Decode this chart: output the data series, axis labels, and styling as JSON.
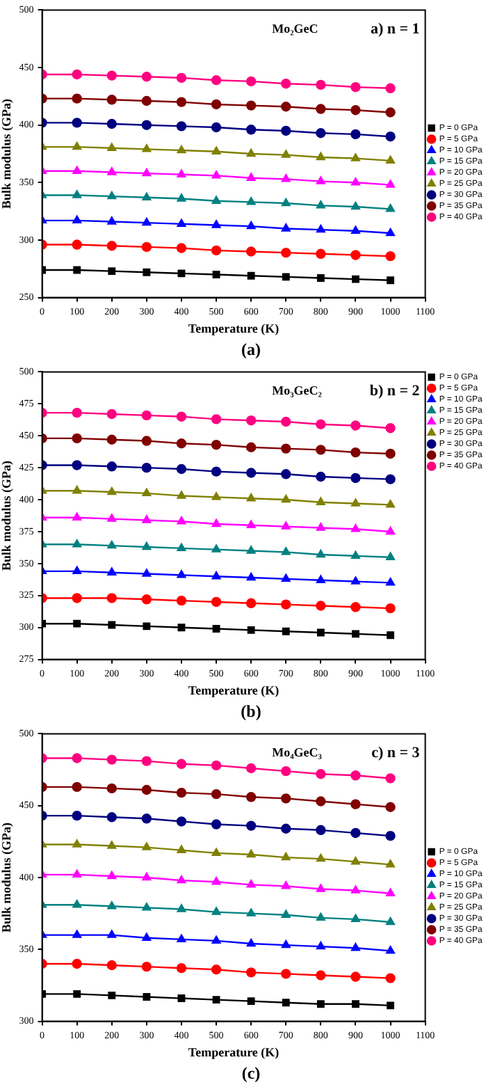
{
  "chart_data": [
    {
      "type": "line",
      "xlabel": "Temperature (K)",
      "ylabel": "Bulk modulus (GPa)",
      "annotations": [
        "Mo₂GeC",
        "a) n = 1",
        "(a)"
      ],
      "x": [
        0,
        100,
        200,
        300,
        400,
        500,
        600,
        700,
        800,
        900,
        1000
      ],
      "xlim": [
        0,
        1100
      ],
      "xticks": [
        0,
        100,
        200,
        300,
        400,
        500,
        600,
        700,
        800,
        900,
        1000,
        1100
      ],
      "ylim": [
        250,
        500
      ],
      "yticks": [
        250,
        300,
        350,
        400,
        450,
        500
      ],
      "legend": "right",
      "grid": false,
      "series": [
        {
          "name": "P = 0 GPa",
          "color": "#000000",
          "marker": "square",
          "values": [
            274,
            274,
            273,
            272,
            271,
            270,
            269,
            268,
            267,
            266,
            265
          ]
        },
        {
          "name": "P = 5 GPa",
          "color": "#ff0000",
          "marker": "circle",
          "values": [
            296,
            296,
            295,
            294,
            293,
            291,
            290,
            289,
            288,
            287,
            286
          ]
        },
        {
          "name": "P = 10 GPa",
          "color": "#0000ff",
          "marker": "triangle",
          "values": [
            317,
            317,
            316,
            315,
            314,
            313,
            312,
            310,
            309,
            308,
            306
          ]
        },
        {
          "name": "P = 15 GPa",
          "color": "#008080",
          "marker": "triangle",
          "values": [
            339,
            339,
            338,
            337,
            336,
            334,
            333,
            332,
            330,
            329,
            327
          ]
        },
        {
          "name": "P = 20 GPa",
          "color": "#ff00ff",
          "marker": "triangle",
          "values": [
            360,
            360,
            359,
            358,
            357,
            356,
            354,
            353,
            351,
            350,
            348
          ]
        },
        {
          "name": "P = 25 GPa",
          "color": "#808000",
          "marker": "triangle",
          "values": [
            381,
            381,
            380,
            379,
            378,
            377,
            375,
            374,
            372,
            371,
            369
          ]
        },
        {
          "name": "P = 30 GPa",
          "color": "#000080",
          "marker": "circle",
          "values": [
            402,
            402,
            401,
            400,
            399,
            398,
            396,
            395,
            393,
            392,
            390
          ]
        },
        {
          "name": "P = 35 GPa",
          "color": "#800000",
          "marker": "circle",
          "values": [
            423,
            423,
            422,
            421,
            420,
            418,
            417,
            416,
            414,
            413,
            411
          ]
        },
        {
          "name": "P = 40 GPa",
          "color": "#ff0080",
          "marker": "circle",
          "values": [
            444,
            444,
            443,
            442,
            441,
            439,
            438,
            436,
            435,
            433,
            432
          ]
        }
      ]
    },
    {
      "type": "line",
      "xlabel": "Temperature (K)",
      "ylabel": "Bulk modulus (GPa)",
      "annotations": [
        "Mo₃GeC₂",
        "b) n = 2",
        "(b)"
      ],
      "x": [
        0,
        100,
        200,
        300,
        400,
        500,
        600,
        700,
        800,
        900,
        1000
      ],
      "xlim": [
        0,
        1100
      ],
      "xticks": [
        0,
        100,
        200,
        300,
        400,
        500,
        600,
        700,
        800,
        900,
        1000,
        1100
      ],
      "ylim": [
        275,
        500
      ],
      "yticks": [
        275,
        300,
        325,
        350,
        375,
        400,
        425,
        450,
        475,
        500
      ],
      "legend": "top right",
      "grid": false,
      "series": [
        {
          "name": "P = 0 GPa",
          "color": "#000000",
          "marker": "square",
          "values": [
            303,
            303,
            302,
            301,
            300,
            299,
            298,
            297,
            296,
            295,
            294
          ]
        },
        {
          "name": "P = 5 GPa",
          "color": "#ff0000",
          "marker": "circle",
          "values": [
            323,
            323,
            323,
            322,
            321,
            320,
            319,
            318,
            317,
            316,
            315
          ]
        },
        {
          "name": "P = 10 GPa",
          "color": "#0000ff",
          "marker": "triangle",
          "values": [
            344,
            344,
            343,
            342,
            341,
            340,
            339,
            338,
            337,
            336,
            335
          ]
        },
        {
          "name": "P = 15 GPa",
          "color": "#008080",
          "marker": "triangle",
          "values": [
            365,
            365,
            364,
            363,
            362,
            361,
            360,
            359,
            357,
            356,
            355
          ]
        },
        {
          "name": "P = 20 GPa",
          "color": "#ff00ff",
          "marker": "triangle",
          "values": [
            386,
            386,
            385,
            384,
            383,
            381,
            380,
            379,
            378,
            377,
            375
          ]
        },
        {
          "name": "P = 25 GPa",
          "color": "#808000",
          "marker": "triangle",
          "values": [
            407,
            407,
            406,
            405,
            403,
            402,
            401,
            400,
            398,
            397,
            396
          ]
        },
        {
          "name": "P = 30 GPa",
          "color": "#000080",
          "marker": "circle",
          "values": [
            427,
            427,
            426,
            425,
            424,
            422,
            421,
            420,
            418,
            417,
            416
          ]
        },
        {
          "name": "P = 35 GPa",
          "color": "#800000",
          "marker": "circle",
          "values": [
            448,
            448,
            447,
            446,
            444,
            443,
            441,
            440,
            439,
            437,
            436
          ]
        },
        {
          "name": "P = 40 GPa",
          "color": "#ff0080",
          "marker": "circle",
          "values": [
            468,
            468,
            467,
            466,
            465,
            463,
            462,
            461,
            459,
            458,
            456
          ]
        }
      ]
    },
    {
      "type": "line",
      "xlabel": "Temperature (K)",
      "ylabel": "Bulk modulus (GPa)",
      "annotations": [
        "Mo₄GeC₃",
        "c) n = 3",
        "(c)"
      ],
      "x": [
        0,
        100,
        200,
        300,
        400,
        500,
        600,
        700,
        800,
        900,
        1000
      ],
      "xlim": [
        0,
        1100
      ],
      "xticks": [
        0,
        100,
        200,
        300,
        400,
        500,
        600,
        700,
        800,
        900,
        1000,
        1100
      ],
      "ylim": [
        300,
        500
      ],
      "yticks": [
        300,
        350,
        400,
        450,
        500
      ],
      "legend": "right",
      "grid": false,
      "series": [
        {
          "name": "P = 0 GPa",
          "color": "#000000",
          "marker": "square",
          "values": [
            319,
            319,
            318,
            317,
            316,
            315,
            314,
            313,
            312,
            312,
            311
          ]
        },
        {
          "name": "P = 5 GPa",
          "color": "#ff0000",
          "marker": "circle",
          "values": [
            340,
            340,
            339,
            338,
            337,
            336,
            334,
            333,
            332,
            331,
            330
          ]
        },
        {
          "name": "P = 10 GPa",
          "color": "#0000ff",
          "marker": "triangle",
          "values": [
            360,
            360,
            360,
            358,
            357,
            356,
            354,
            353,
            352,
            351,
            349
          ]
        },
        {
          "name": "P = 15 GPa",
          "color": "#008080",
          "marker": "triangle",
          "values": [
            381,
            381,
            380,
            379,
            378,
            376,
            375,
            374,
            372,
            371,
            369
          ]
        },
        {
          "name": "P = 20 GPa",
          "color": "#ff00ff",
          "marker": "triangle",
          "values": [
            402,
            402,
            401,
            400,
            398,
            397,
            395,
            394,
            392,
            391,
            389
          ]
        },
        {
          "name": "P = 25 GPa",
          "color": "#808000",
          "marker": "triangle",
          "values": [
            423,
            423,
            422,
            421,
            419,
            417,
            416,
            414,
            413,
            411,
            409
          ]
        },
        {
          "name": "P = 30 GPa",
          "color": "#000080",
          "marker": "circle",
          "values": [
            443,
            443,
            442,
            441,
            439,
            437,
            436,
            434,
            433,
            431,
            429
          ]
        },
        {
          "name": "P = 35 GPa",
          "color": "#800000",
          "marker": "circle",
          "values": [
            463,
            463,
            462,
            461,
            459,
            458,
            456,
            455,
            453,
            451,
            449
          ]
        },
        {
          "name": "P = 40 GPa",
          "color": "#ff0080",
          "marker": "circle",
          "values": [
            483,
            483,
            482,
            481,
            479,
            478,
            476,
            474,
            472,
            471,
            469
          ]
        }
      ]
    }
  ]
}
